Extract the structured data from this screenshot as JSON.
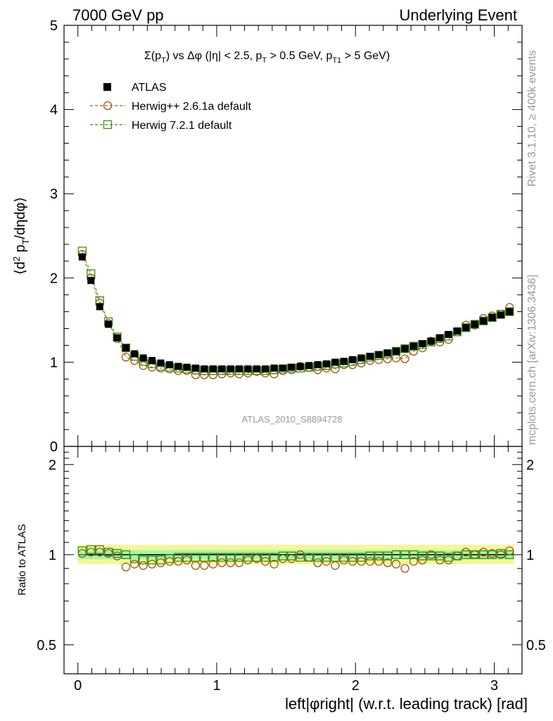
{
  "header": {
    "left": "7000 GeV pp",
    "right": "Underlying Event"
  },
  "side_labels": {
    "rivet": "Rivet 3.1.10, ≥ 400k events",
    "mcplots": "mcplots.cern.ch [arXiv:1306.3436]"
  },
  "chart_data": [
    {
      "type": "scatter",
      "panel": "main",
      "title": "Σ(pT) vs Δφ (|η| < 2.5, pT > 0.5 GeV, pT1 > 5 GeV)",
      "ylabel": "⟨d² pT/dηdφ⟩",
      "watermark": "ATLAS_2010_S8894728",
      "xlim": [
        -0.1,
        3.2
      ],
      "ylim": [
        0,
        5
      ],
      "yticks": [
        "5",
        "4",
        "3",
        "2",
        "1",
        "0"
      ],
      "legend_position": "top-left",
      "legend": [
        "ATLAS",
        "Herwig++ 2.6.1a default",
        "Herwig 7.2.1 default"
      ],
      "x": [
        0.031,
        0.094,
        0.157,
        0.22,
        0.283,
        0.346,
        0.408,
        0.471,
        0.534,
        0.597,
        0.66,
        0.723,
        0.785,
        0.848,
        0.911,
        0.974,
        1.037,
        1.1,
        1.162,
        1.225,
        1.288,
        1.351,
        1.414,
        1.477,
        1.539,
        1.602,
        1.665,
        1.728,
        1.791,
        1.854,
        1.916,
        1.979,
        2.042,
        2.105,
        2.168,
        2.231,
        2.293,
        2.356,
        2.419,
        2.482,
        2.545,
        2.608,
        2.67,
        2.733,
        2.796,
        2.859,
        2.922,
        2.985,
        3.047,
        3.11
      ],
      "series": [
        {
          "name": "ATLAS",
          "color": "#000000",
          "marker": "filled-square",
          "values": [
            2.25,
            1.97,
            1.66,
            1.45,
            1.29,
            1.17,
            1.1,
            1.05,
            1.02,
            0.99,
            0.97,
            0.95,
            0.94,
            0.93,
            0.92,
            0.92,
            0.92,
            0.92,
            0.92,
            0.92,
            0.92,
            0.92,
            0.93,
            0.93,
            0.94,
            0.95,
            0.96,
            0.97,
            0.98,
            1.0,
            1.01,
            1.03,
            1.05,
            1.07,
            1.09,
            1.11,
            1.13,
            1.16,
            1.19,
            1.22,
            1.25,
            1.29,
            1.33,
            1.37,
            1.41,
            1.45,
            1.49,
            1.53,
            1.56,
            1.6
          ]
        },
        {
          "name": "Herwig++ 2.6.1a default",
          "color": "#a0570c",
          "marker": "open-circle",
          "values": [
            2.28,
            2.0,
            1.7,
            1.46,
            1.28,
            1.06,
            1.02,
            0.96,
            0.94,
            0.93,
            0.92,
            0.9,
            0.9,
            0.85,
            0.85,
            0.85,
            0.86,
            0.87,
            0.86,
            0.87,
            0.89,
            0.87,
            0.86,
            0.9,
            0.91,
            0.95,
            0.94,
            0.91,
            0.93,
            0.92,
            0.97,
            0.97,
            0.99,
            1.02,
            1.03,
            1.04,
            1.05,
            1.04,
            1.13,
            1.17,
            1.25,
            1.24,
            1.27,
            1.36,
            1.44,
            1.44,
            1.52,
            1.55,
            1.57,
            1.65
          ]
        },
        {
          "name": "Herwig 7.2.1 default",
          "color": "#3c8c14",
          "marker": "open-square",
          "values": [
            2.32,
            2.05,
            1.73,
            1.48,
            1.3,
            1.17,
            1.07,
            1.01,
            0.98,
            0.95,
            0.94,
            0.93,
            0.92,
            0.91,
            0.9,
            0.9,
            0.9,
            0.9,
            0.9,
            0.9,
            0.9,
            0.9,
            0.91,
            0.92,
            0.93,
            0.93,
            0.94,
            0.95,
            0.96,
            0.98,
            0.99,
            1.01,
            1.03,
            1.06,
            1.08,
            1.1,
            1.13,
            1.16,
            1.19,
            1.21,
            1.24,
            1.28,
            1.31,
            1.36,
            1.41,
            1.45,
            1.49,
            1.53,
            1.57,
            1.6
          ]
        }
      ]
    },
    {
      "type": "scatter",
      "panel": "ratio",
      "ylabel": "Ratio to ATLAS",
      "xlabel": "left|φright| (w.r.t. leading track) [rad]",
      "xlim": [
        -0.1,
        3.2
      ],
      "ylim": [
        0.4,
        2.3
      ],
      "xticks": [
        "0",
        "1",
        "2",
        "3"
      ],
      "yticks": [
        "2",
        "1",
        "0.5"
      ],
      "band_colors": {
        "inner": "#a6f5a6",
        "outer": "#f5f59a"
      },
      "series": [
        {
          "name": "Herwig++ 2.6.1a default",
          "color": "#a0570c",
          "marker": "open-circle",
          "values": [
            1.01,
            1.02,
            1.02,
            1.01,
            0.99,
            0.91,
            0.93,
            0.92,
            0.93,
            0.94,
            0.95,
            0.95,
            0.96,
            0.92,
            0.92,
            0.93,
            0.94,
            0.94,
            0.94,
            0.96,
            0.97,
            0.95,
            0.93,
            0.97,
            0.97,
            1.0,
            0.98,
            0.94,
            0.95,
            0.92,
            0.96,
            0.95,
            0.95,
            0.95,
            0.95,
            0.94,
            0.93,
            0.9,
            0.95,
            0.96,
            1.0,
            0.96,
            0.96,
            0.99,
            1.02,
            1.0,
            1.02,
            1.01,
            1.0,
            1.03
          ]
        },
        {
          "name": "Herwig 7.2.1 default",
          "color": "#3c8c14",
          "marker": "open-square",
          "values": [
            1.03,
            1.04,
            1.04,
            1.02,
            1.01,
            1.0,
            0.97,
            0.96,
            0.96,
            0.96,
            0.97,
            0.98,
            0.98,
            0.98,
            0.98,
            0.98,
            0.98,
            0.98,
            0.98,
            0.98,
            0.98,
            0.98,
            0.98,
            0.99,
            0.99,
            0.98,
            0.98,
            0.98,
            0.98,
            0.98,
            0.98,
            0.98,
            0.98,
            0.99,
            0.99,
            0.99,
            1.0,
            1.0,
            1.0,
            0.99,
            0.99,
            0.99,
            0.98,
            0.99,
            1.0,
            1.0,
            1.0,
            1.0,
            1.01,
            1.0
          ]
        }
      ]
    }
  ]
}
